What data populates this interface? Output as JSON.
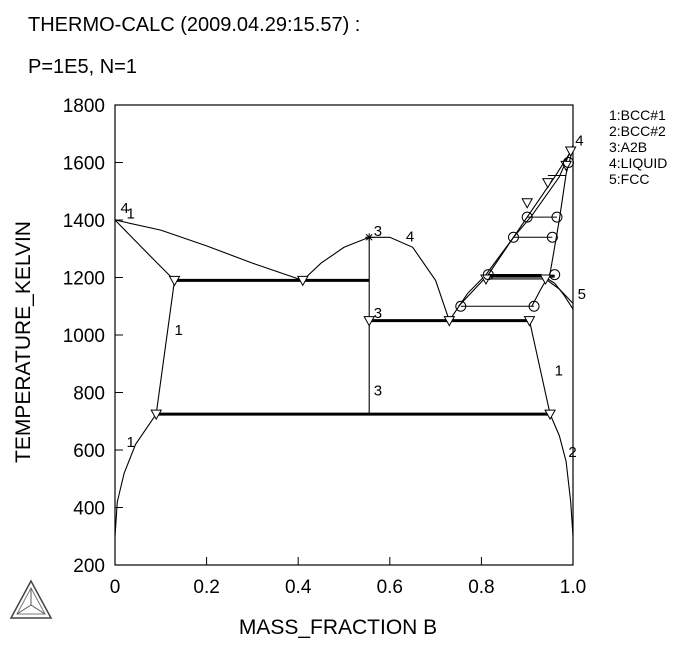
{
  "header": {
    "line1": "THERMO-CALC (2009.04.29:15.57) :",
    "line2": "P=1E5, N=1"
  },
  "legend": [
    "1:BCC#1",
    "2:BCC#2",
    "3:A2B",
    "4:LIQUID",
    "5:FCC"
  ],
  "chart_data": {
    "type": "line",
    "xlabel": "MASS_FRACTION B",
    "ylabel": "TEMPERATURE_KELVIN",
    "xlim": [
      0,
      1.0
    ],
    "ylim": [
      200,
      1800
    ],
    "xticks": [
      0,
      0.2,
      0.4,
      0.6,
      0.8,
      1.0
    ],
    "xtick_labels": [
      "0",
      "0.2",
      "0.4",
      "0.6",
      "0.8",
      "1.0"
    ],
    "yticks": [
      200,
      400,
      600,
      800,
      1000,
      1200,
      1400,
      1600,
      1800
    ],
    "ytick_labels": [
      "200",
      "400",
      "600",
      "800",
      "1000",
      "1200",
      "1400",
      "1600",
      "1800"
    ],
    "grid": false,
    "boundaries": [
      {
        "points": [
          [
            0,
            300
          ],
          [
            0.005,
            420
          ],
          [
            0.02,
            520
          ],
          [
            0.045,
            620
          ],
          [
            0.09,
            725
          ]
        ]
      },
      {
        "points": [
          [
            0.09,
            725
          ],
          [
            0.13,
            1190
          ]
        ]
      },
      {
        "points": [
          [
            0,
            1400
          ],
          [
            0.04,
            1335
          ],
          [
            0.08,
            1270
          ],
          [
            0.13,
            1190
          ]
        ]
      },
      {
        "points": [
          [
            0,
            1400
          ],
          [
            0.1,
            1365
          ],
          [
            0.2,
            1310
          ],
          [
            0.3,
            1250
          ],
          [
            0.41,
            1190
          ]
        ]
      },
      {
        "points": [
          [
            0.41,
            1190
          ],
          [
            0.45,
            1250
          ],
          [
            0.5,
            1305
          ],
          [
            0.555,
            1340
          ],
          [
            0.6,
            1340
          ],
          [
            0.65,
            1305
          ],
          [
            0.7,
            1190
          ],
          [
            0.73,
            1050
          ]
        ]
      },
      {
        "points": [
          [
            0.555,
            1340
          ],
          [
            0.555,
            725
          ]
        ]
      },
      {
        "points": [
          [
            0.73,
            1050
          ],
          [
            0.77,
            1145
          ],
          [
            0.81,
            1210
          ],
          [
            0.87,
            1340
          ],
          [
            0.9,
            1410
          ],
          [
            0.96,
            1550
          ],
          [
            1.0,
            1650
          ]
        ]
      },
      {
        "points": [
          [
            0.75,
            1100
          ],
          [
            0.815,
            1210
          ],
          [
            0.87,
            1340
          ],
          [
            0.91,
            1415
          ],
          [
            0.97,
            1550
          ],
          [
            1.0,
            1660
          ]
        ]
      },
      {
        "points": [
          [
            0.815,
            1210
          ],
          [
            0.93,
            1210
          ],
          [
            0.96,
            1180
          ],
          [
            0.98,
            1140
          ],
          [
            1.0,
            1090
          ]
        ]
      },
      {
        "points": [
          [
            0.81,
            1195
          ],
          [
            0.94,
            1195
          ],
          [
            0.97,
            1160
          ],
          [
            1.0,
            1110
          ]
        ]
      },
      {
        "points": [
          [
            0.91,
            1100
          ],
          [
            0.93,
            1160
          ],
          [
            0.95,
            1215
          ],
          [
            0.97,
            1400
          ],
          [
            0.985,
            1560
          ],
          [
            1.0,
            1650
          ]
        ]
      },
      {
        "points": [
          [
            0.905,
            1050
          ],
          [
            0.95,
            725
          ]
        ]
      },
      {
        "points": [
          [
            0.95,
            725
          ],
          [
            0.97,
            650
          ],
          [
            0.985,
            560
          ],
          [
            0.995,
            420
          ],
          [
            1.0,
            300
          ]
        ]
      }
    ],
    "tie_lines": [
      {
        "from": [
          0.13,
          1190
        ],
        "to": [
          0.555,
          1190
        ],
        "bold": true
      },
      {
        "from": [
          0.555,
          1050
        ],
        "to": [
          0.905,
          1050
        ],
        "bold": true
      },
      {
        "from": [
          0.09,
          725
        ],
        "to": [
          0.95,
          725
        ],
        "bold": true
      },
      {
        "from": [
          0.81,
          1205
        ],
        "to": [
          0.96,
          1205
        ],
        "bold": true
      },
      {
        "from": [
          0.755,
          1100
        ],
        "to": [
          0.915,
          1100
        ],
        "bold": false
      },
      {
        "from": [
          0.87,
          1340
        ],
        "to": [
          0.955,
          1340
        ],
        "bold": false
      },
      {
        "from": [
          0.9,
          1410
        ],
        "to": [
          0.965,
          1410
        ],
        "bold": false
      },
      {
        "from": [
          0.945,
          1555
        ],
        "to": [
          0.985,
          1555
        ],
        "bold": false
      }
    ],
    "triangle_markers": [
      [
        0.13,
        1190
      ],
      [
        0.41,
        1190
      ],
      [
        0.555,
        1050
      ],
      [
        0.73,
        1050
      ],
      [
        0.905,
        1050
      ],
      [
        0.09,
        725
      ],
      [
        0.95,
        725
      ],
      [
        0.81,
        1195
      ],
      [
        0.94,
        1195
      ],
      [
        0.9,
        1460
      ],
      [
        0.945,
        1530
      ],
      [
        0.985,
        1590
      ],
      [
        0.995,
        1640
      ]
    ],
    "circle_markers": [
      [
        0.755,
        1100
      ],
      [
        0.915,
        1100
      ],
      [
        0.87,
        1340
      ],
      [
        0.955,
        1340
      ],
      [
        0.9,
        1410
      ],
      [
        0.965,
        1410
      ],
      [
        0.815,
        1210
      ],
      [
        0.96,
        1210
      ],
      [
        0.99,
        1600
      ]
    ],
    "star_markers": [
      [
        0.555,
        1340
      ]
    ],
    "curve_labels": [
      {
        "text": "4",
        "x": 0.012,
        "y": 1425
      },
      {
        "text": "1",
        "x": 0.025,
        "y": 1405
      },
      {
        "text": "1",
        "x": 0.13,
        "y": 1000
      },
      {
        "text": "1",
        "x": 0.025,
        "y": 610
      },
      {
        "text": "3",
        "x": 0.565,
        "y": 1345
      },
      {
        "text": "4",
        "x": 0.635,
        "y": 1325
      },
      {
        "text": "3",
        "x": 0.565,
        "y": 1060
      },
      {
        "text": "3",
        "x": 0.565,
        "y": 790
      },
      {
        "text": "1",
        "x": 0.96,
        "y": 860
      },
      {
        "text": "2",
        "x": 0.99,
        "y": 575
      },
      {
        "text": "5",
        "x": 1.01,
        "y": 1125
      },
      {
        "text": "4",
        "x": 1.005,
        "y": 1660
      }
    ]
  }
}
